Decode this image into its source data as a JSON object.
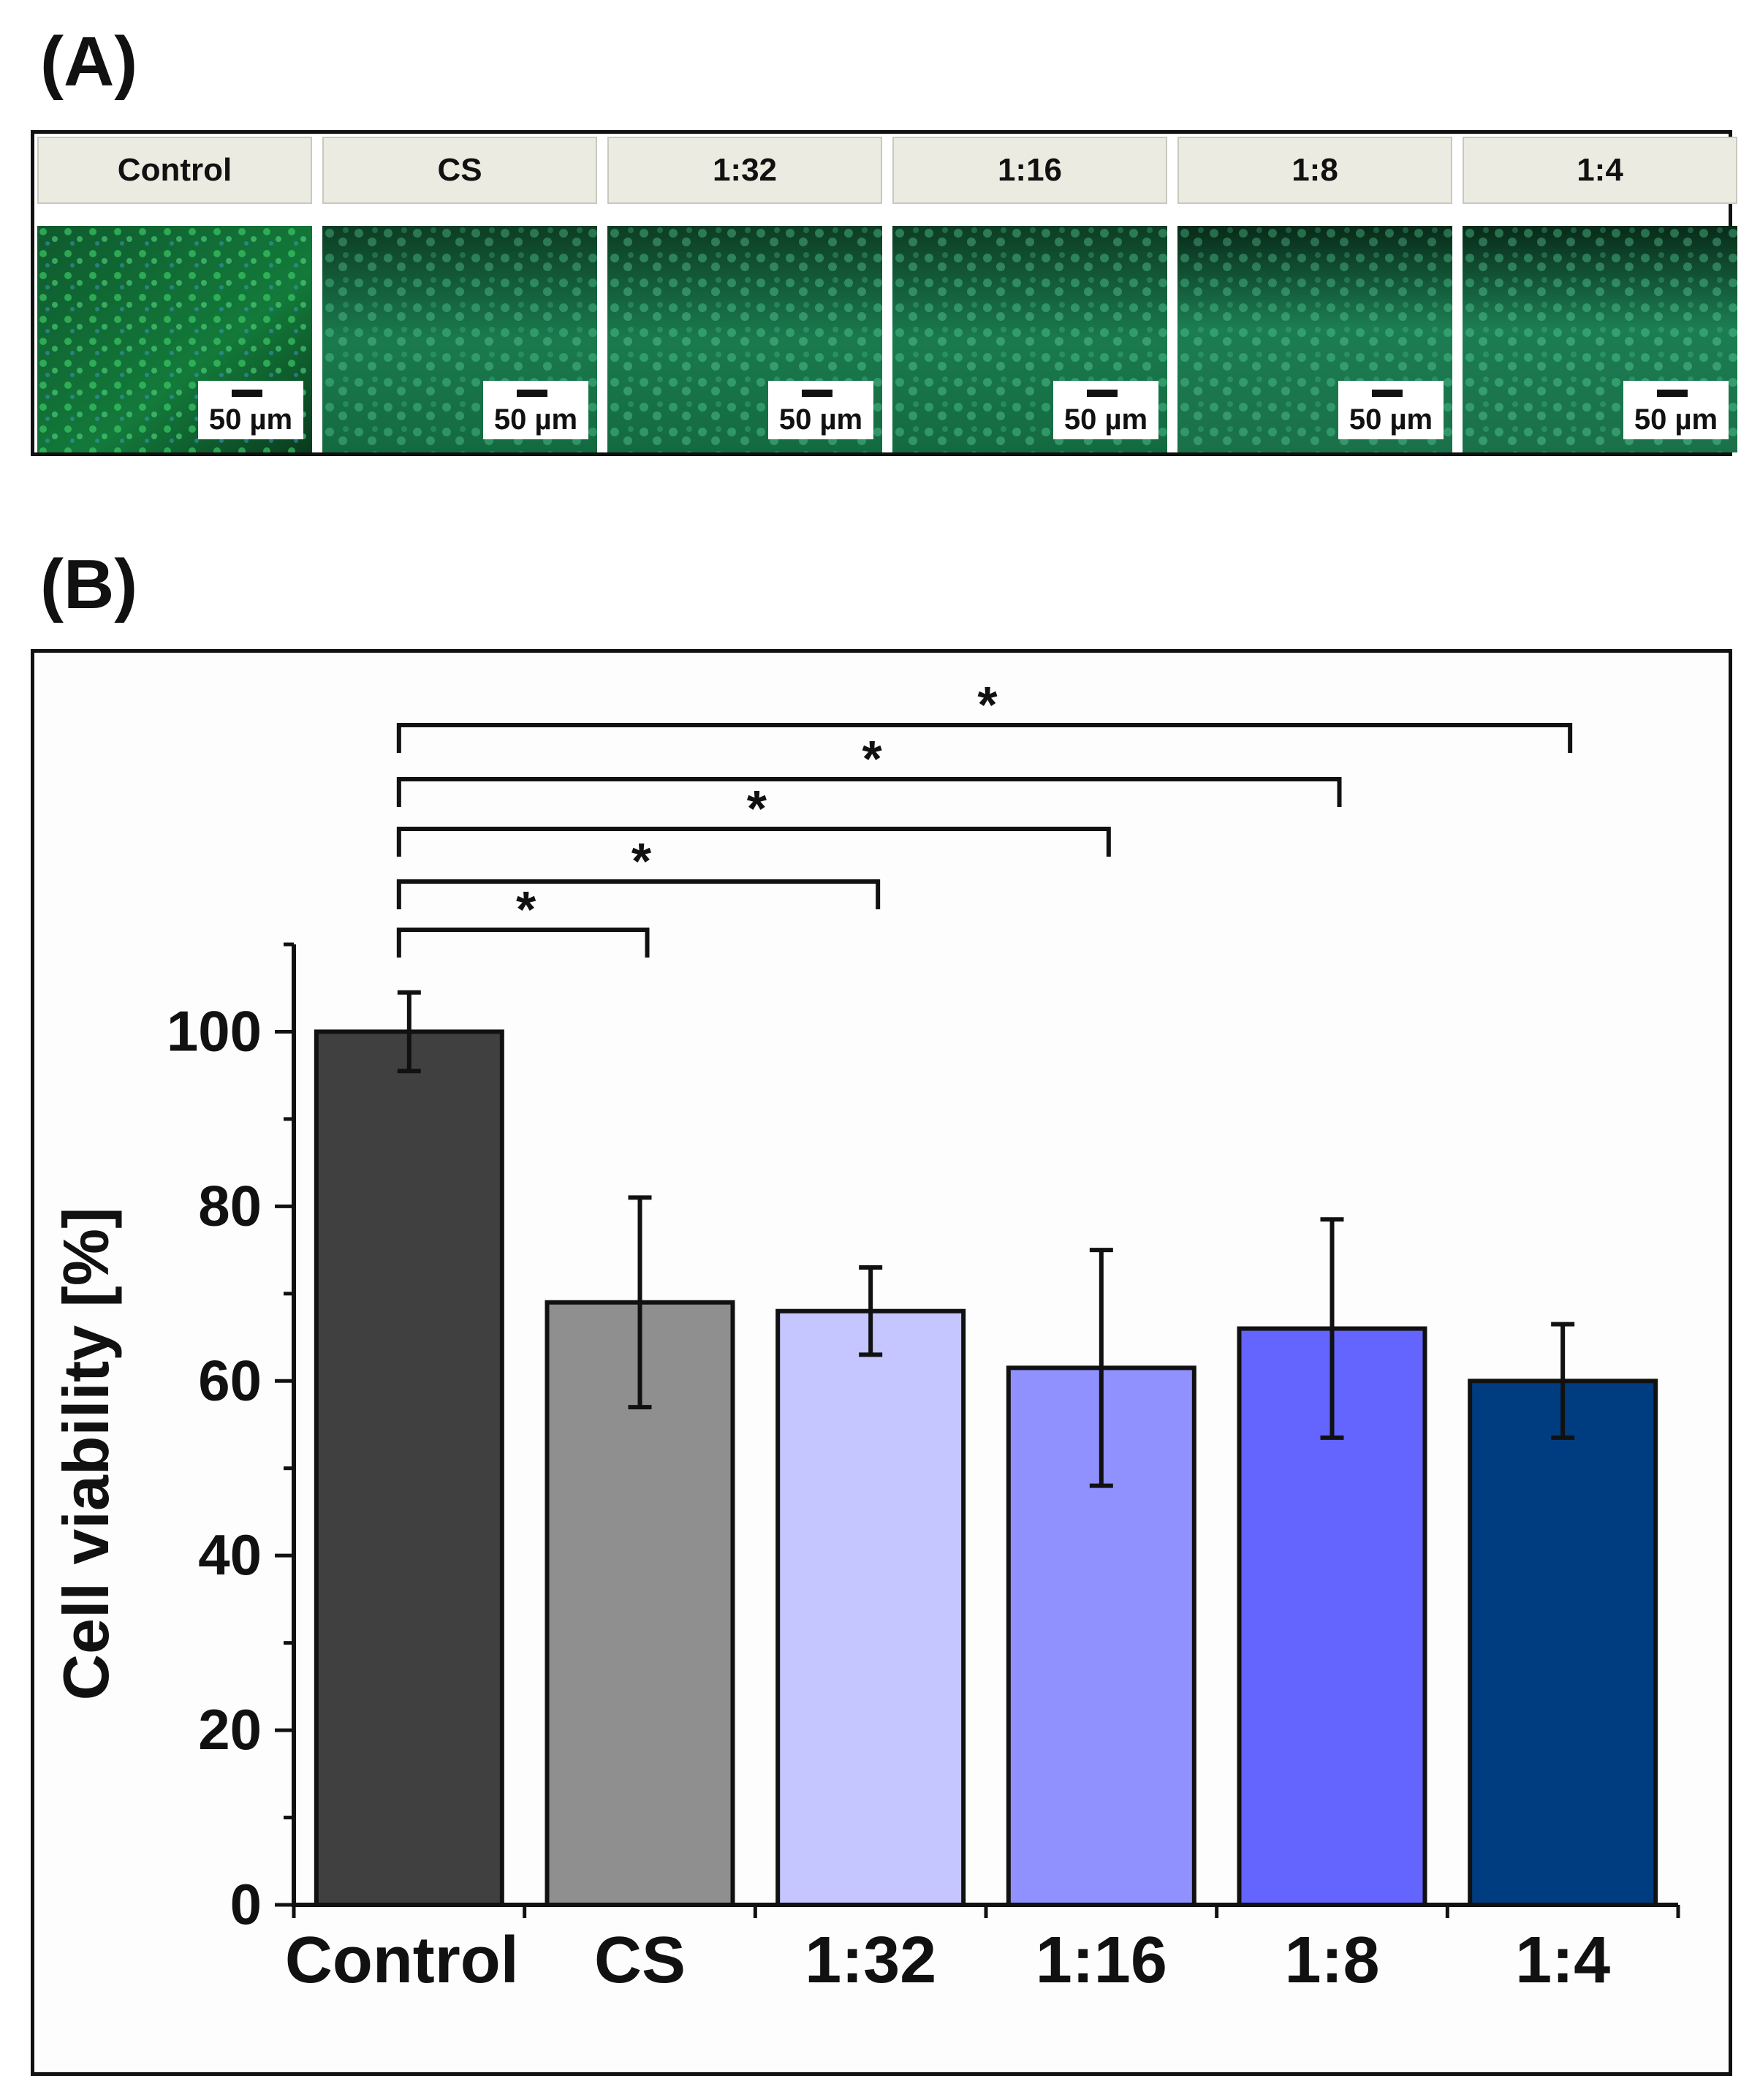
{
  "panel_a": {
    "label": "(A)",
    "columns": [
      {
        "header": "Control",
        "scale": "50 µm"
      },
      {
        "header": "CS",
        "scale": "50 µm"
      },
      {
        "header": "1:32",
        "scale": "50 µm"
      },
      {
        "header": "1:16",
        "scale": "50 µm"
      },
      {
        "header": "1:8",
        "scale": "50 µm"
      },
      {
        "header": "1:4",
        "scale": "50 µm"
      }
    ]
  },
  "panel_b": {
    "label": "(B)"
  },
  "chart_data": {
    "type": "bar",
    "title": "",
    "xlabel": "",
    "ylabel": "Cell viability [%]",
    "ylim": [
      0,
      110
    ],
    "yticks": [
      0,
      20,
      40,
      60,
      80,
      100
    ],
    "categories": [
      "Control",
      "CS",
      "1:32",
      "1:16",
      "1:8",
      "1:4"
    ],
    "values": [
      100,
      69,
      68,
      61.5,
      66,
      60
    ],
    "errors": [
      4.5,
      12,
      5,
      13.5,
      12.5,
      6.5
    ],
    "colors": [
      "#404040",
      "#8f8f8f",
      "#c5c5ff",
      "#9090ff",
      "#6464ff",
      "#003d80"
    ],
    "significance": [
      {
        "from": "Control",
        "to": "CS",
        "label": "*"
      },
      {
        "from": "Control",
        "to": "1:32",
        "label": "*"
      },
      {
        "from": "Control",
        "to": "1:16",
        "label": "*"
      },
      {
        "from": "Control",
        "to": "1:8",
        "label": "*"
      },
      {
        "from": "Control",
        "to": "1:4",
        "label": "*"
      }
    ]
  }
}
